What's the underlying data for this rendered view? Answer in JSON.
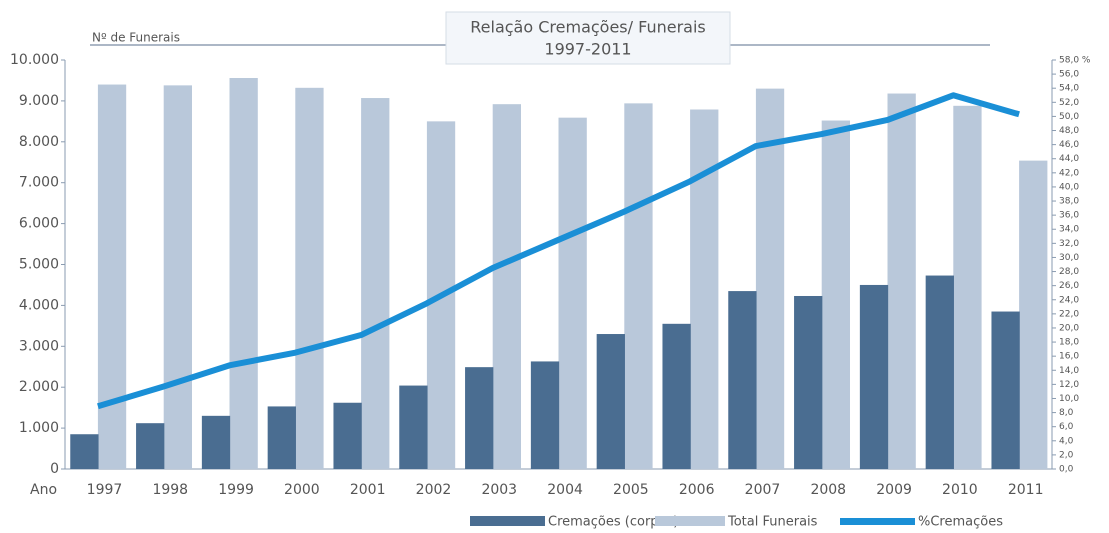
{
  "chart_data": {
    "type": "bar",
    "title": "Relação Cremações/ Funerais",
    "subtitle": "1997-2011",
    "y_label": "Nº de Funerais",
    "x_label": "Ano",
    "categories": [
      "1997",
      "1998",
      "1999",
      "2000",
      "2001",
      "2002",
      "2003",
      "2004",
      "2005",
      "2006",
      "2007",
      "2008",
      "2009",
      "2010",
      "2011"
    ],
    "series": [
      {
        "name": "Cremações (corpos)",
        "color": "#4a6d91",
        "type": "bar",
        "values": [
          850,
          1120,
          1300,
          1530,
          1620,
          2040,
          2490,
          2630,
          3300,
          3550,
          4350,
          4230,
          4500,
          4730,
          3850
        ]
      },
      {
        "name": "Total Funerais",
        "color": "#b9c8da",
        "type": "bar",
        "values": [
          9400,
          9380,
          9560,
          9320,
          9070,
          8500,
          8920,
          8590,
          8940,
          8790,
          9300,
          8520,
          9180,
          8880,
          7540
        ]
      },
      {
        "name": "%Cremações",
        "color": "#1a8fd6",
        "type": "line",
        "axis": "y2",
        "values": [
          8.9,
          11.7,
          14.7,
          16.5,
          19.0,
          23.5,
          28.5,
          32.5,
          36.5,
          40.8,
          45.8,
          47.5,
          49.5,
          53.0,
          50.3
        ]
      }
    ],
    "ylim": [
      0,
      10000
    ],
    "yticks": [
      0,
      {
        "value": 1000,
        "label": "1.000"
      },
      {
        "value": 2000,
        "label": "2.000"
      },
      {
        "value": 3000,
        "label": "3.000"
      },
      {
        "value": 4000,
        "label": "4.000"
      },
      {
        "value": 5000,
        "label": "5.000"
      },
      {
        "value": 6000,
        "label": "6.000"
      },
      {
        "value": 7000,
        "label": "7.000"
      },
      {
        "value": 8000,
        "label": "8.000"
      },
      {
        "value": 9000,
        "label": "9.000"
      },
      {
        "value": 10000,
        "label": "10.000"
      }
    ],
    "y2lim": [
      0,
      58
    ],
    "y2ticks": [
      {
        "value": 0,
        "label": "0,0"
      },
      {
        "value": 2,
        "label": "2,0"
      },
      {
        "value": 4,
        "label": "4,0"
      },
      {
        "value": 6,
        "label": "6,0"
      },
      {
        "value": 8,
        "label": "8,0"
      },
      {
        "value": 10,
        "label": "10,0"
      },
      {
        "value": 12,
        "label": "12,0"
      },
      {
        "value": 14,
        "label": "14,0"
      },
      {
        "value": 16,
        "label": "16,0"
      },
      {
        "value": 18,
        "label": "18,0"
      },
      {
        "value": 20,
        "label": "20,0"
      },
      {
        "value": 22,
        "label": "22,0"
      },
      {
        "value": 24,
        "label": "24,0"
      },
      {
        "value": 26,
        "label": "26,0"
      },
      {
        "value": 28,
        "label": "28,0"
      },
      {
        "value": 30,
        "label": "30,0"
      },
      {
        "value": 32,
        "label": "32,0"
      },
      {
        "value": 34,
        "label": "34,0"
      },
      {
        "value": 36,
        "label": "36,0"
      },
      {
        "value": 38,
        "label": "38,0"
      },
      {
        "value": 40,
        "label": "40,0"
      },
      {
        "value": 42,
        "label": "42,0"
      },
      {
        "value": 44,
        "label": "44,0"
      },
      {
        "value": 46,
        "label": "46,0"
      },
      {
        "value": 48,
        "label": "48,0"
      },
      {
        "value": 50,
        "label": "50,0"
      },
      {
        "value": 52,
        "label": "52,0"
      },
      {
        "value": 54,
        "label": "54,0"
      },
      {
        "value": 56,
        "label": "56,0"
      },
      {
        "value": 58,
        "label": "58,0 %"
      }
    ],
    "legend": "bottom-right"
  }
}
